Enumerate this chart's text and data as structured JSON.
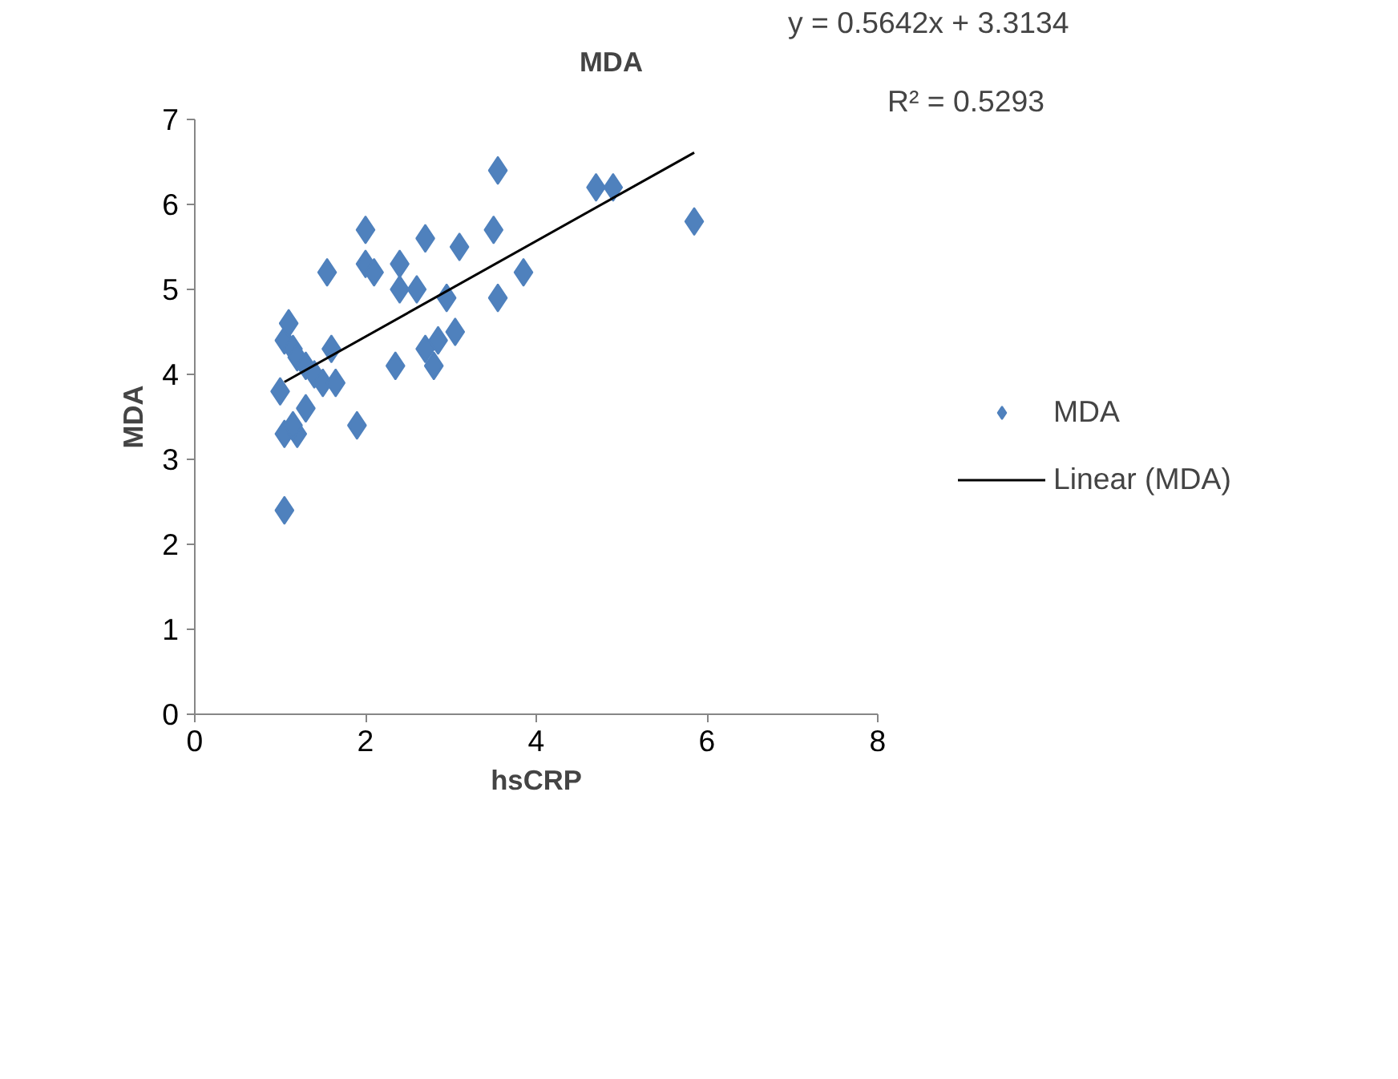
{
  "chart_data": {
    "type": "scatter",
    "title": "MDA",
    "xlabel": "hsCRP",
    "ylabel": "MDA",
    "xlim": [
      0,
      8
    ],
    "xticks": [
      0,
      2,
      4,
      6,
      8
    ],
    "ylim": [
      0,
      7
    ],
    "yticks": [
      0,
      1,
      2,
      3,
      4,
      5,
      6,
      7
    ],
    "grid": false,
    "legend": "right",
    "annotations": [
      "y = 0.5642x + 3.3134",
      "R² = 0.5293"
    ],
    "series": [
      {
        "name": "MDA",
        "color": "#4f81bd",
        "marker": "diamond",
        "x": [
          1.05,
          1.0,
          1.05,
          1.2,
          1.15,
          1.05,
          1.1,
          1.15,
          1.2,
          1.3,
          1.3,
          1.4,
          1.5,
          1.6,
          1.65,
          1.55,
          1.9,
          2.0,
          2.0,
          2.1,
          2.35,
          2.4,
          2.4,
          2.6,
          2.7,
          2.7,
          2.8,
          2.85,
          2.95,
          3.05,
          3.1,
          3.5,
          3.55,
          3.55,
          3.85,
          4.7,
          4.9,
          5.85
        ],
        "values": [
          2.4,
          3.8,
          3.3,
          3.3,
          3.4,
          4.4,
          4.6,
          4.3,
          4.2,
          4.1,
          3.6,
          4.0,
          3.9,
          4.3,
          3.9,
          5.2,
          3.4,
          5.7,
          5.3,
          5.2,
          4.1,
          5.0,
          5.3,
          5.0,
          5.6,
          4.3,
          4.1,
          4.4,
          4.9,
          4.5,
          5.5,
          5.7,
          6.4,
          4.9,
          5.2,
          6.2,
          6.2,
          5.8
        ]
      },
      {
        "name": "Linear (MDA)",
        "type": "line",
        "color": "#000000",
        "x": [
          1.05,
          5.85
        ],
        "values": [
          3.91,
          6.61
        ]
      }
    ]
  }
}
